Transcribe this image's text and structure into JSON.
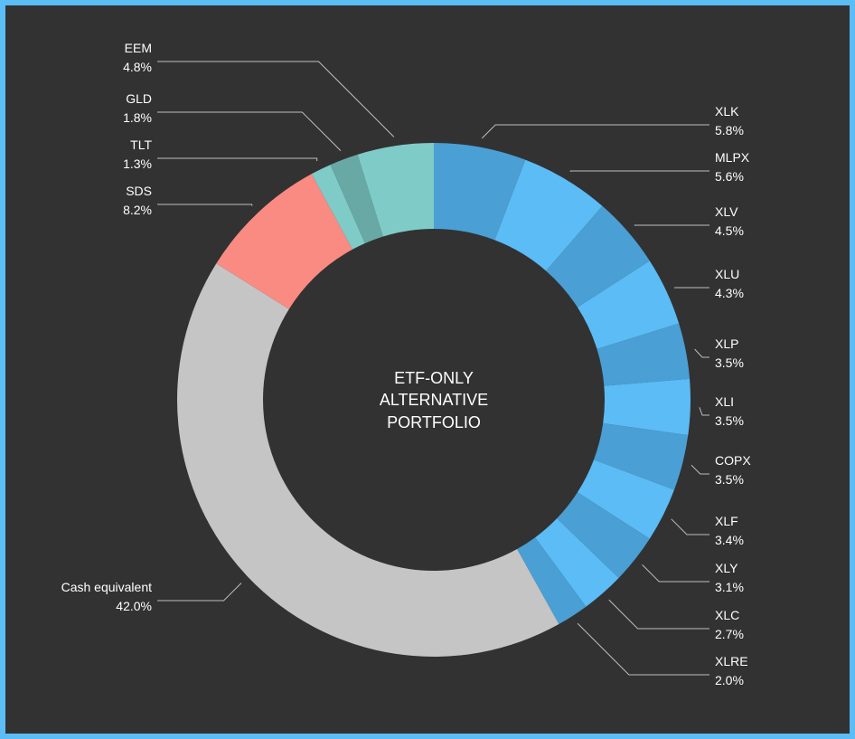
{
  "chart_data": {
    "type": "pie",
    "variant": "donut",
    "title_lines": [
      "ETF-ONLY",
      "ALTERNATIVE",
      "PORTFOLIO"
    ],
    "slices": [
      {
        "label": "XLK",
        "value": 5.8,
        "display": "5.8%",
        "color": "#4a9fd4"
      },
      {
        "label": "MLPX",
        "value": 5.6,
        "display": "5.6%",
        "color": "#5bbcf6"
      },
      {
        "label": "XLV",
        "value": 4.5,
        "display": "4.5%",
        "color": "#4a9fd4"
      },
      {
        "label": "XLU",
        "value": 4.3,
        "display": "4.3%",
        "color": "#5bbcf6"
      },
      {
        "label": "XLP",
        "value": 3.5,
        "display": "3.5%",
        "color": "#4a9fd4"
      },
      {
        "label": "XLI",
        "value": 3.5,
        "display": "3.5%",
        "color": "#5bbcf6"
      },
      {
        "label": "COPX",
        "value": 3.5,
        "display": "3.5%",
        "color": "#4a9fd4"
      },
      {
        "label": "XLF",
        "value": 3.4,
        "display": "3.4%",
        "color": "#5bbcf6"
      },
      {
        "label": "XLY",
        "value": 3.1,
        "display": "3.1%",
        "color": "#4a9fd4"
      },
      {
        "label": "XLC",
        "value": 2.7,
        "display": "2.7%",
        "color": "#5bbcf6"
      },
      {
        "label": "XLRE",
        "value": 2.0,
        "display": "2.0%",
        "color": "#4a9fd4"
      },
      {
        "label": "Cash equivalent",
        "value": 42.0,
        "display": "42.0%",
        "color": "#c5c5c5"
      },
      {
        "label": "SDS",
        "value": 8.2,
        "display": "8.2%",
        "color": "#f98b82"
      },
      {
        "label": "TLT",
        "value": 1.3,
        "display": "1.3%",
        "color": "#7fcbc7"
      },
      {
        "label": "GLD",
        "value": 1.8,
        "display": "1.8%",
        "color": "#68a9a6"
      },
      {
        "label": "EEM",
        "value": 4.8,
        "display": "4.8%",
        "color": "#7fcbc7"
      }
    ]
  }
}
